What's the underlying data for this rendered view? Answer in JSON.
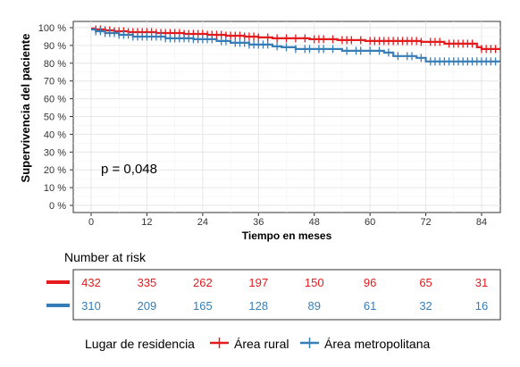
{
  "chart_data": {
    "type": "line",
    "subtype": "kaplan-meier",
    "title": "",
    "xlabel": "Tiempo en meses",
    "ylabel": "Supervivencia del paciente",
    "xlim": [
      0,
      88
    ],
    "ylim": [
      0,
      100
    ],
    "x_ticks": [
      0,
      12,
      24,
      36,
      48,
      60,
      72,
      84
    ],
    "y_ticks": [
      0,
      10,
      20,
      30,
      40,
      50,
      60,
      70,
      80,
      90,
      100
    ],
    "y_tick_suffix": " %",
    "grid": true,
    "annotation": "p = 0,048",
    "legend_title": "Lugar de residencia",
    "legend_position": "bottom",
    "series": [
      {
        "name": "Área rural",
        "color": "#e41a1c",
        "steps": [
          [
            0,
            99.5
          ],
          [
            1,
            99
          ],
          [
            3,
            98.5
          ],
          [
            5,
            98
          ],
          [
            8,
            97.5
          ],
          [
            14,
            97
          ],
          [
            20,
            96.5
          ],
          [
            25,
            96
          ],
          [
            29,
            95.5
          ],
          [
            33,
            95
          ],
          [
            36,
            94.5
          ],
          [
            39,
            94
          ],
          [
            47,
            93.5
          ],
          [
            53,
            93
          ],
          [
            59,
            92.5
          ],
          [
            71,
            92
          ],
          [
            76,
            91
          ],
          [
            83,
            89
          ],
          [
            84,
            88
          ],
          [
            88,
            88
          ]
        ],
        "censor_x": [
          1,
          2,
          3,
          4,
          5,
          6,
          7,
          8,
          9,
          10,
          11,
          12,
          13,
          14,
          15,
          16,
          17,
          18,
          19,
          20,
          21,
          22,
          23,
          24,
          25,
          26,
          27,
          28,
          29,
          30,
          31,
          32,
          33,
          34,
          35,
          36,
          38,
          40,
          42,
          44,
          46,
          48,
          49,
          50,
          52,
          54,
          55,
          56,
          58,
          60,
          61,
          62,
          63,
          64,
          65,
          66,
          67,
          68,
          69,
          70,
          71,
          73,
          74,
          75,
          77,
          78,
          79,
          80,
          81,
          82,
          84,
          85,
          86,
          87
        ]
      },
      {
        "name": "Área metropolitana",
        "color": "#377eb8",
        "steps": [
          [
            0,
            99
          ],
          [
            1,
            98
          ],
          [
            3,
            97
          ],
          [
            6,
            96
          ],
          [
            9,
            95
          ],
          [
            16,
            94
          ],
          [
            22,
            93.5
          ],
          [
            27,
            92.5
          ],
          [
            30,
            91.5
          ],
          [
            34,
            90.5
          ],
          [
            39,
            89.5
          ],
          [
            41,
            89
          ],
          [
            44,
            88
          ],
          [
            54,
            87
          ],
          [
            63,
            86
          ],
          [
            65,
            84
          ],
          [
            70,
            83
          ],
          [
            72,
            81
          ],
          [
            88,
            81
          ]
        ],
        "censor_x": [
          1,
          2,
          3,
          4,
          5,
          6,
          7,
          8,
          9,
          10,
          11,
          12,
          13,
          14,
          15,
          16,
          17,
          18,
          19,
          20,
          21,
          22,
          23,
          24,
          25,
          26,
          28,
          29,
          31,
          32,
          33,
          34,
          35,
          36,
          37,
          38,
          40,
          42,
          44,
          46,
          47,
          49,
          50,
          52,
          55,
          57,
          58,
          60,
          62,
          64,
          66,
          68,
          69,
          71,
          73,
          74,
          75,
          76,
          77,
          78,
          79,
          80,
          81,
          82,
          83,
          84,
          85,
          86,
          87
        ]
      }
    ],
    "risk_table": {
      "title": "Number at risk",
      "times": [
        0,
        12,
        24,
        36,
        48,
        60,
        72,
        84
      ],
      "rows": [
        {
          "name": "Área rural",
          "color": "#e41a1c",
          "values": [
            "432",
            "335",
            "262",
            "197",
            "150",
            "96",
            "65",
            "31"
          ]
        },
        {
          "name": "Área metropolitana",
          "color": "#377eb8",
          "values": [
            "310",
            "209",
            "165",
            "128",
            "89",
            "61",
            "32",
            "16"
          ]
        }
      ]
    }
  }
}
